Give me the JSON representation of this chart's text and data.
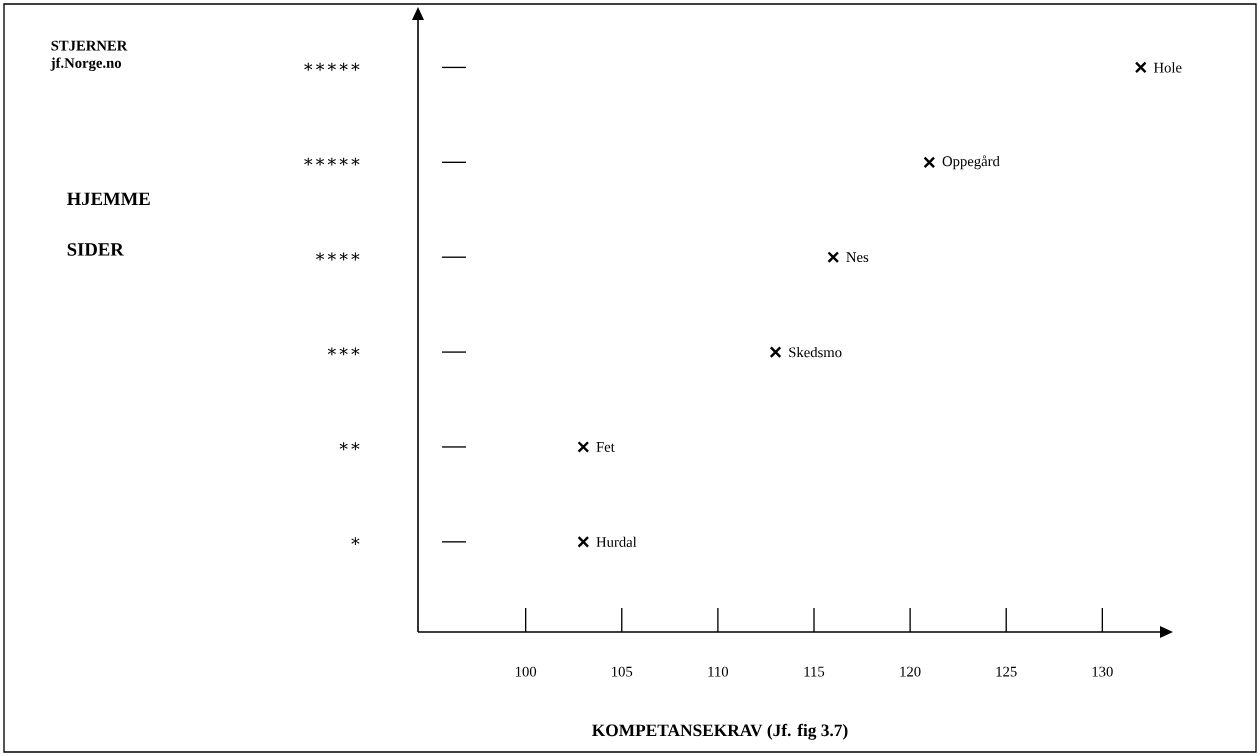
{
  "chart_data": {
    "type": "scatter",
    "orientation": "horizontal",
    "xlabel": "KOMPETANSEKRAV (Jf. fig 3.7)",
    "ylabel": "HJEMME SIDER",
    "categories": [
      "∗∗∗∗∗",
      "∗∗∗∗∗",
      "∗∗∗∗",
      "∗∗∗",
      "∗∗",
      "∗"
    ],
    "series": [
      {
        "name": "Hole",
        "color": "#000000",
        "values": [
          132,
          null,
          null,
          null,
          null,
          null
        ]
      },
      {
        "name": "Oppegård",
        "color": "#000000",
        "values": [
          null,
          121,
          null,
          null,
          null,
          null
        ]
      },
      {
        "name": "Nes",
        "color": "#000000",
        "values": [
          null,
          null,
          116,
          null,
          null,
          null
        ]
      },
      {
        "name": "Skedsmo",
        "color": "#000000",
        "values": [
          null,
          null,
          null,
          113,
          null,
          null
        ]
      },
      {
        "name": "Fet",
        "color": "#000000",
        "values": [
          null,
          null,
          null,
          null,
          103,
          null
        ]
      },
      {
        "name": "Hurdal",
        "color": "#000000",
        "values": [
          null,
          null,
          null,
          null,
          null,
          103
        ]
      }
    ],
    "marker": "cross",
    "xlim": [
      94.4,
      133
    ],
    "xticks": [
      100,
      105,
      110,
      115,
      120,
      125,
      130
    ],
    "grid": false,
    "annotations": [
      "STJERNER jf.Norge.no"
    ]
  }
}
